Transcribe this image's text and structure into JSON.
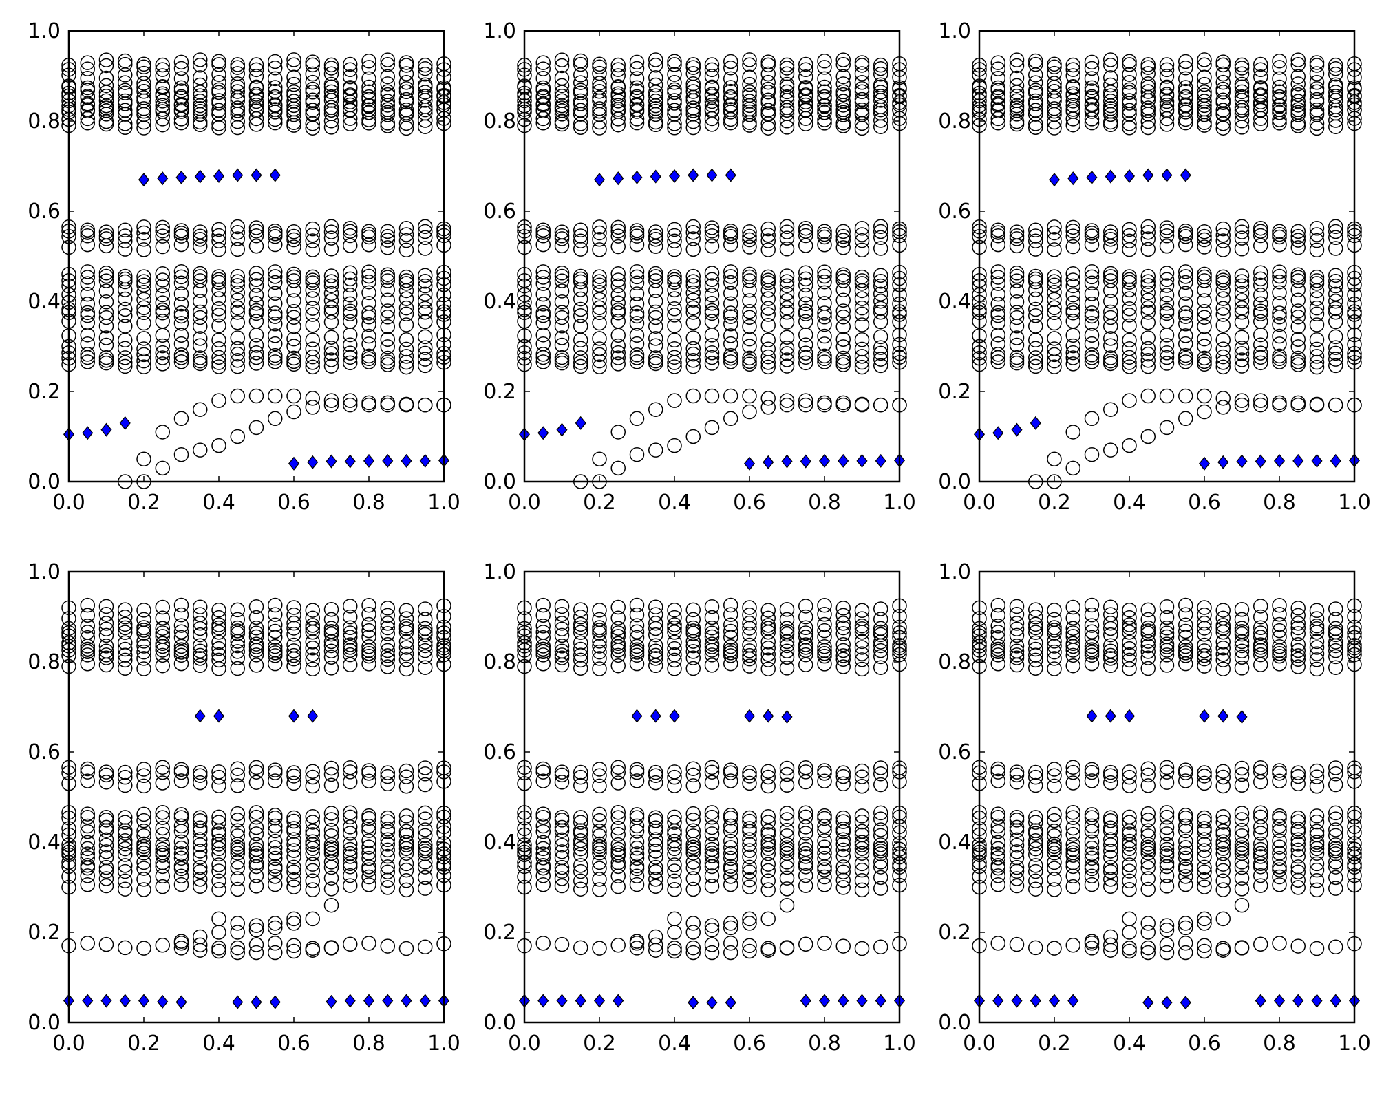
{
  "figure": {
    "rows": 2,
    "cols": 3
  },
  "chart_data": [
    {
      "type": "scatter",
      "panel": "row1-col1",
      "xlim": [
        0.0,
        1.0
      ],
      "ylim": [
        0.0,
        1.0
      ],
      "xticks": [
        "0.0",
        "0.2",
        "0.4",
        "0.6",
        "0.8",
        "1.0"
      ],
      "yticks": [
        "0.0",
        "0.2",
        "0.4",
        "0.6",
        "0.8",
        "1.0"
      ],
      "title": "",
      "xlabel": "",
      "ylabel": "",
      "grid": false,
      "series": [
        {
          "name": "circles",
          "marker": "circle-open",
          "x": [
            0.15,
            0.2,
            0.25,
            0.3,
            0.35,
            0.4,
            0.45,
            0.5,
            0.55,
            0.6,
            0.65,
            0.7,
            0.75,
            0.8,
            0.85,
            0.9,
            0.95,
            1.0,
            0.2,
            0.25,
            0.3,
            0.35,
            0.4,
            0.45,
            0.5,
            0.55,
            0.6,
            0.65,
            0.7,
            0.75,
            0.8,
            0.85,
            0.9,
            0.95,
            1.0
          ],
          "y": [
            0.0,
            0.05,
            0.03,
            0.06,
            0.07,
            0.08,
            0.1,
            0.12,
            0.14,
            0.155,
            0.165,
            0.17,
            0.17,
            0.17,
            0.17,
            0.17,
            0.17,
            0.17,
            0.0,
            0.11,
            0.14,
            0.16,
            0.18,
            0.19,
            0.19,
            0.19,
            0.19,
            0.185,
            0.18,
            0.18,
            0.175,
            0.175,
            0.172,
            0.17,
            0.17
          ]
        },
        {
          "name": "diamonds",
          "marker": "diamond-blue",
          "color": "#0000ff",
          "x": [
            0.0,
            0.05,
            0.1,
            0.15,
            0.2,
            0.25,
            0.3,
            0.35,
            0.4,
            0.45,
            0.5,
            0.55,
            0.6,
            0.65,
            0.7,
            0.75,
            0.8,
            0.85,
            0.9,
            0.95,
            1.0
          ],
          "y": [
            0.105,
            0.108,
            0.115,
            0.13,
            0.67,
            0.673,
            0.675,
            0.677,
            0.678,
            0.68,
            0.68,
            0.68,
            0.04,
            0.043,
            0.045,
            0.045,
            0.046,
            0.046,
            0.046,
            0.046,
            0.047
          ]
        }
      ]
    },
    {
      "type": "scatter",
      "panel": "row1-col2",
      "xlim": [
        0.0,
        1.0
      ],
      "ylim": [
        0.0,
        1.0
      ],
      "xticks": [
        "0.0",
        "0.2",
        "0.4",
        "0.6",
        "0.8",
        "1.0"
      ],
      "yticks": [
        "0.0",
        "0.2",
        "0.4",
        "0.6",
        "0.8",
        "1.0"
      ],
      "title": "",
      "xlabel": "",
      "ylabel": "",
      "grid": false,
      "series": [
        {
          "name": "circles",
          "marker": "circle-open",
          "x": [
            0.15,
            0.2,
            0.25,
            0.3,
            0.35,
            0.4,
            0.45,
            0.5,
            0.55,
            0.6,
            0.65,
            0.7,
            0.75,
            0.8,
            0.85,
            0.9,
            0.95,
            1.0,
            0.2,
            0.25,
            0.3,
            0.35,
            0.4,
            0.45,
            0.5,
            0.55,
            0.6,
            0.65,
            0.7,
            0.75,
            0.8,
            0.85,
            0.9,
            0.95,
            1.0
          ],
          "y": [
            0.0,
            0.05,
            0.03,
            0.06,
            0.07,
            0.08,
            0.1,
            0.12,
            0.14,
            0.155,
            0.165,
            0.17,
            0.17,
            0.17,
            0.17,
            0.17,
            0.17,
            0.17,
            0.0,
            0.11,
            0.14,
            0.16,
            0.18,
            0.19,
            0.19,
            0.19,
            0.19,
            0.185,
            0.18,
            0.18,
            0.175,
            0.175,
            0.172,
            0.17,
            0.17
          ]
        },
        {
          "name": "diamonds",
          "marker": "diamond-blue",
          "color": "#0000ff",
          "x": [
            0.0,
            0.05,
            0.1,
            0.15,
            0.2,
            0.25,
            0.3,
            0.35,
            0.4,
            0.45,
            0.5,
            0.55,
            0.6,
            0.65,
            0.7,
            0.75,
            0.8,
            0.85,
            0.9,
            0.95,
            1.0
          ],
          "y": [
            0.105,
            0.108,
            0.115,
            0.13,
            0.67,
            0.673,
            0.675,
            0.677,
            0.678,
            0.68,
            0.68,
            0.68,
            0.04,
            0.043,
            0.045,
            0.045,
            0.046,
            0.046,
            0.046,
            0.046,
            0.047
          ]
        }
      ]
    },
    {
      "type": "scatter",
      "panel": "row1-col3",
      "xlim": [
        0.0,
        1.0
      ],
      "ylim": [
        0.0,
        1.0
      ],
      "xticks": [
        "0.0",
        "0.2",
        "0.4",
        "0.6",
        "0.8",
        "1.0"
      ],
      "yticks": [
        "0.0",
        "0.2",
        "0.4",
        "0.6",
        "0.8",
        "1.0"
      ],
      "title": "",
      "xlabel": "",
      "ylabel": "",
      "grid": false,
      "series": [
        {
          "name": "circles",
          "marker": "circle-open",
          "x": [
            0.15,
            0.2,
            0.25,
            0.3,
            0.35,
            0.4,
            0.45,
            0.5,
            0.55,
            0.6,
            0.65,
            0.7,
            0.75,
            0.8,
            0.85,
            0.9,
            0.95,
            1.0,
            0.2,
            0.25,
            0.3,
            0.35,
            0.4,
            0.45,
            0.5,
            0.55,
            0.6,
            0.65,
            0.7,
            0.75,
            0.8,
            0.85,
            0.9,
            0.95,
            1.0
          ],
          "y": [
            0.0,
            0.05,
            0.03,
            0.06,
            0.07,
            0.08,
            0.1,
            0.12,
            0.14,
            0.155,
            0.165,
            0.17,
            0.17,
            0.17,
            0.17,
            0.17,
            0.17,
            0.17,
            0.0,
            0.11,
            0.14,
            0.16,
            0.18,
            0.19,
            0.19,
            0.19,
            0.19,
            0.185,
            0.18,
            0.18,
            0.175,
            0.175,
            0.172,
            0.17,
            0.17
          ]
        },
        {
          "name": "diamonds",
          "marker": "diamond-blue",
          "color": "#0000ff",
          "x": [
            0.0,
            0.05,
            0.1,
            0.15,
            0.2,
            0.25,
            0.3,
            0.35,
            0.4,
            0.45,
            0.5,
            0.55,
            0.6,
            0.65,
            0.7,
            0.75,
            0.8,
            0.85,
            0.9,
            0.95,
            1.0
          ],
          "y": [
            0.105,
            0.108,
            0.115,
            0.13,
            0.67,
            0.673,
            0.675,
            0.677,
            0.678,
            0.68,
            0.68,
            0.68,
            0.04,
            0.043,
            0.045,
            0.045,
            0.046,
            0.046,
            0.046,
            0.046,
            0.047
          ]
        }
      ]
    },
    {
      "type": "scatter",
      "panel": "row2-col1",
      "xlim": [
        0.0,
        1.0
      ],
      "ylim": [
        0.0,
        1.0
      ],
      "xticks": [
        "0.0",
        "0.2",
        "0.4",
        "0.6",
        "0.8",
        "1.0"
      ],
      "yticks": [
        "0.0",
        "0.2",
        "0.4",
        "0.6",
        "0.8",
        "1.0"
      ],
      "title": "",
      "xlabel": "",
      "ylabel": "",
      "grid": false,
      "series": [
        {
          "name": "circles",
          "marker": "circle-open",
          "x": [
            0.3,
            0.35,
            0.4,
            0.45,
            0.5,
            0.55,
            0.6,
            0.65,
            0.7,
            0.3,
            0.35,
            0.4,
            0.45,
            0.5,
            0.55,
            0.6,
            0.65,
            0.7,
            0.4,
            0.45,
            0.5,
            0.55,
            0.6
          ],
          "y": [
            0.165,
            0.16,
            0.158,
            0.155,
            0.155,
            0.155,
            0.158,
            0.16,
            0.165,
            0.18,
            0.19,
            0.2,
            0.2,
            0.205,
            0.21,
            0.22,
            0.23,
            0.26,
            0.23,
            0.22,
            0.215,
            0.22,
            0.23
          ]
        },
        {
          "name": "diamonds",
          "marker": "diamond-blue",
          "color": "#0000ff",
          "x": [
            0.0,
            0.05,
            0.1,
            0.15,
            0.2,
            0.25,
            0.3,
            0.45,
            0.5,
            0.55,
            0.7,
            0.75,
            0.8,
            0.85,
            0.9,
            0.95,
            1.0,
            0.35,
            0.4,
            0.6,
            0.65
          ],
          "y": [
            0.048,
            0.048,
            0.048,
            0.048,
            0.048,
            0.046,
            0.045,
            0.045,
            0.045,
            0.045,
            0.046,
            0.048,
            0.048,
            0.048,
            0.048,
            0.048,
            0.048,
            0.68,
            0.68,
            0.68,
            0.68
          ]
        }
      ]
    },
    {
      "type": "scatter",
      "panel": "row2-col2",
      "xlim": [
        0.0,
        1.0
      ],
      "ylim": [
        0.0,
        1.0
      ],
      "xticks": [
        "0.0",
        "0.2",
        "0.4",
        "0.6",
        "0.8",
        "1.0"
      ],
      "yticks": [
        "0.0",
        "0.2",
        "0.4",
        "0.6",
        "0.8",
        "1.0"
      ],
      "title": "",
      "xlabel": "",
      "ylabel": "",
      "grid": false,
      "series": [
        {
          "name": "circles",
          "marker": "circle-open",
          "x": [
            0.3,
            0.35,
            0.4,
            0.45,
            0.5,
            0.55,
            0.6,
            0.65,
            0.7,
            0.3,
            0.35,
            0.4,
            0.45,
            0.5,
            0.55,
            0.6,
            0.65,
            0.7,
            0.4,
            0.45,
            0.5,
            0.55,
            0.6
          ],
          "y": [
            0.165,
            0.16,
            0.158,
            0.155,
            0.155,
            0.155,
            0.158,
            0.16,
            0.165,
            0.18,
            0.19,
            0.2,
            0.2,
            0.205,
            0.21,
            0.22,
            0.23,
            0.26,
            0.23,
            0.22,
            0.215,
            0.22,
            0.23
          ]
        },
        {
          "name": "diamonds",
          "marker": "diamond-blue",
          "color": "#0000ff",
          "x": [
            0.0,
            0.05,
            0.1,
            0.15,
            0.2,
            0.25,
            0.45,
            0.5,
            0.55,
            0.75,
            0.8,
            0.85,
            0.9,
            0.95,
            1.0,
            0.3,
            0.35,
            0.4,
            0.6,
            0.65,
            0.7
          ],
          "y": [
            0.048,
            0.048,
            0.048,
            0.048,
            0.048,
            0.048,
            0.044,
            0.044,
            0.044,
            0.048,
            0.048,
            0.048,
            0.048,
            0.048,
            0.048,
            0.68,
            0.68,
            0.68,
            0.68,
            0.68,
            0.678
          ]
        }
      ]
    },
    {
      "type": "scatter",
      "panel": "row2-col3",
      "xlim": [
        0.0,
        1.0
      ],
      "ylim": [
        0.0,
        1.0
      ],
      "xticks": [
        "0.0",
        "0.2",
        "0.4",
        "0.6",
        "0.8",
        "1.0"
      ],
      "yticks": [
        "0.0",
        "0.2",
        "0.4",
        "0.6",
        "0.8",
        "1.0"
      ],
      "title": "",
      "xlabel": "",
      "ylabel": "",
      "grid": false,
      "series": [
        {
          "name": "circles",
          "marker": "circle-open",
          "x": [
            0.3,
            0.35,
            0.4,
            0.45,
            0.5,
            0.55,
            0.6,
            0.65,
            0.7,
            0.3,
            0.35,
            0.4,
            0.45,
            0.5,
            0.55,
            0.6,
            0.65,
            0.7,
            0.4,
            0.45,
            0.5,
            0.55,
            0.6
          ],
          "y": [
            0.165,
            0.16,
            0.158,
            0.155,
            0.155,
            0.155,
            0.158,
            0.16,
            0.165,
            0.18,
            0.19,
            0.2,
            0.2,
            0.205,
            0.21,
            0.22,
            0.23,
            0.26,
            0.23,
            0.22,
            0.215,
            0.22,
            0.23
          ]
        },
        {
          "name": "diamonds",
          "marker": "diamond-blue",
          "color": "#0000ff",
          "x": [
            0.0,
            0.05,
            0.1,
            0.15,
            0.2,
            0.25,
            0.45,
            0.5,
            0.55,
            0.75,
            0.8,
            0.85,
            0.9,
            0.95,
            1.0,
            0.3,
            0.35,
            0.4,
            0.6,
            0.65,
            0.7
          ],
          "y": [
            0.048,
            0.048,
            0.048,
            0.048,
            0.048,
            0.048,
            0.044,
            0.044,
            0.044,
            0.048,
            0.048,
            0.048,
            0.048,
            0.048,
            0.048,
            0.68,
            0.68,
            0.68,
            0.68,
            0.68,
            0.678
          ]
        }
      ]
    }
  ],
  "band_series": {
    "top_row": {
      "x_grid": [
        0.0,
        0.05,
        0.1,
        0.15,
        0.2,
        0.25,
        0.3,
        0.35,
        0.4,
        0.45,
        0.5,
        0.55,
        0.6,
        0.65,
        0.7,
        0.75,
        0.8,
        0.85,
        0.9,
        0.95,
        1.0
      ],
      "bands": [
        [
          0.79,
          0.8,
          0.82,
          0.84,
          0.86,
          0.88,
          0.92,
          0.93
        ],
        [
          0.82,
          0.83,
          0.85,
          0.87,
          0.9
        ],
        [
          0.52,
          0.54,
          0.55,
          0.56
        ],
        [
          0.3,
          0.32,
          0.35,
          0.37,
          0.38,
          0.4,
          0.42,
          0.44,
          0.45,
          0.46
        ],
        [
          0.26,
          0.27,
          0.28
        ]
      ]
    },
    "bottom_row": {
      "x_grid": [
        0.0,
        0.05,
        0.1,
        0.15,
        0.2,
        0.25,
        0.3,
        0.35,
        0.4,
        0.45,
        0.5,
        0.55,
        0.6,
        0.65,
        0.7,
        0.75,
        0.8,
        0.85,
        0.9,
        0.95,
        1.0
      ],
      "bands": [
        [
          0.79,
          0.81,
          0.82,
          0.83,
          0.84,
          0.86,
          0.87,
          0.88,
          0.9,
          0.92
        ],
        [
          0.53,
          0.55,
          0.56
        ],
        [
          0.3,
          0.32,
          0.34,
          0.35,
          0.37,
          0.38,
          0.39,
          0.4,
          0.42,
          0.43,
          0.45,
          0.46
        ],
        [
          0.17
        ]
      ]
    }
  }
}
